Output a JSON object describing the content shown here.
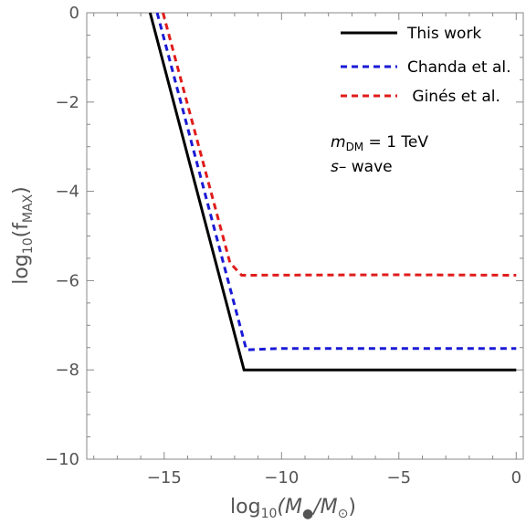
{
  "chart_data": {
    "type": "line",
    "title": "",
    "xlabel": {
      "prefix": "log",
      "sub": "10",
      "open": "(M",
      "open_sub": "●",
      "mid": "/M",
      "mid_sub": "⊙",
      "close": ")"
    },
    "ylabel": {
      "prefix": "log",
      "sub": "10",
      "open": "(f",
      "f_sub": "MAX",
      "close": ")"
    },
    "xlim": [
      -18.3,
      0.3
    ],
    "ylim": [
      -10,
      0
    ],
    "xticks": [
      -15,
      -10,
      -5,
      0
    ],
    "xtick_labels": [
      "−15",
      "−10",
      "−5",
      "0"
    ],
    "yticks": [
      0,
      -2,
      -4,
      -6,
      -8,
      -10
    ],
    "ytick_labels": [
      "0",
      "−2",
      "−4",
      "−6",
      "−8",
      "−10"
    ],
    "x_minor_step": 1,
    "y_minor_step": 0.5,
    "grid": false,
    "legend_position": "top-right",
    "series": [
      {
        "name": "This work",
        "color": "#000000",
        "style": "solid",
        "x": [
          -15.6,
          -11.6,
          0
        ],
        "y": [
          0,
          -8.0,
          -8.0
        ]
      },
      {
        "name": "Chanda et al.",
        "color": "#1a1ad6",
        "style": "dashed",
        "x": [
          -15.3,
          -11.5,
          -10,
          0
        ],
        "y": [
          0,
          -7.55,
          -7.52,
          -7.52
        ]
      },
      {
        "name": " Ginés et al.",
        "color": "#e01c1c",
        "style": "dashed",
        "x": [
          -15.05,
          -12.2,
          -11.7,
          -5,
          0
        ],
        "y": [
          0,
          -5.6,
          -5.88,
          -5.87,
          -5.88
        ]
      }
    ],
    "annotations": [
      {
        "text_main": "m",
        "text_sub": "DM",
        "text_rest": " = 1 TeV"
      },
      {
        "text_main": "s",
        "text_rest": "– wave"
      }
    ]
  }
}
